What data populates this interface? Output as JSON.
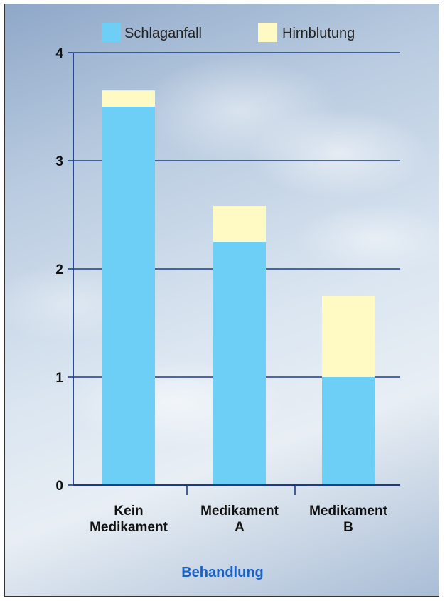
{
  "chart_data": {
    "type": "bar",
    "stacked": true,
    "categories": [
      "Kein Medikament",
      "Medikament A",
      "Medikament B"
    ],
    "category_lines": [
      [
        "Kein",
        "Medikament"
      ],
      [
        "Medikament",
        "A"
      ],
      [
        "Medikament",
        "B"
      ]
    ],
    "series": [
      {
        "name": "Schlaganfall",
        "values": [
          3.5,
          2.25,
          1.0
        ],
        "color": "#6dcff6"
      },
      {
        "name": "Hirnblutung",
        "values": [
          0.15,
          0.33,
          0.75
        ],
        "color": "#fff9c4"
      }
    ],
    "yticks": [
      "0",
      "1",
      "2",
      "3",
      "4"
    ],
    "ylim": [
      0,
      4
    ],
    "xlabel": "Behandlung",
    "ylabel": "",
    "grid": true,
    "legend_position": "top",
    "axis_color": "#1a3a8c"
  }
}
